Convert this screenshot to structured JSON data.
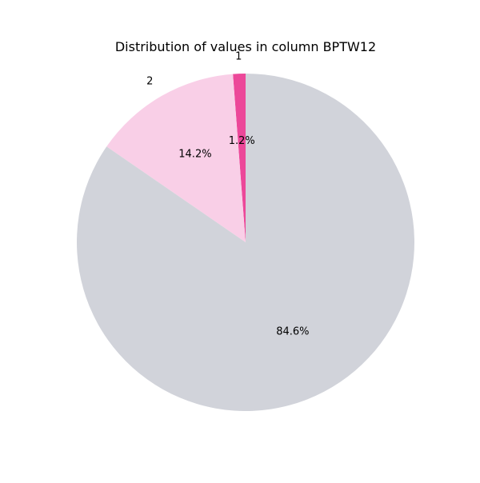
{
  "chart_data": {
    "type": "pie",
    "title": "Distribution of values in column BPTW12",
    "slices": [
      {
        "label": "1",
        "value": 1.2,
        "pct_text": "1.2%",
        "color": "#ec4899"
      },
      {
        "label": "2",
        "value": 14.2,
        "pct_text": "14.2%",
        "color": "#f9cfe7"
      },
      {
        "label": "",
        "value": 84.6,
        "pct_text": "84.6%",
        "color": "#d1d3da"
      }
    ],
    "legend": "none",
    "start_angle_deg": 90,
    "direction": "counterclockwise"
  }
}
